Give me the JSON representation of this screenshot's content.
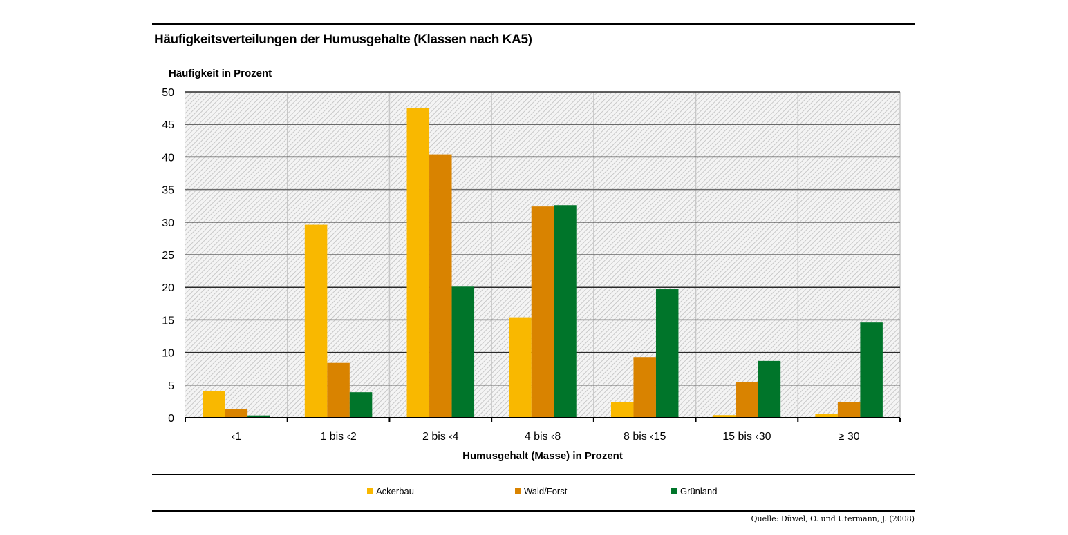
{
  "chart_data": {
    "type": "bar",
    "title": "Häufigkeitsverteilungen der Humusgehalte (Klassen nach KA5)",
    "ylabel": "Häufigkeit in Prozent",
    "xlabel": "Humusgehalt (Masse) in Prozent",
    "ylim": [
      0,
      50
    ],
    "yticks": [
      0,
      5,
      10,
      15,
      20,
      25,
      30,
      35,
      40,
      45,
      50
    ],
    "grid": true,
    "legend_position": "bottom",
    "categories": [
      "‹1",
      "1 bis ‹2",
      "2 bis ‹4",
      "4 bis ‹8",
      "8 bis ‹15",
      "15 bis ‹30",
      "≥ 30"
    ],
    "series": [
      {
        "name": "Ackerbau",
        "color": "#f9b800",
        "values": [
          4.1,
          29.6,
          47.5,
          15.4,
          2.4,
          0.4,
          0.6
        ]
      },
      {
        "name": "Wald/Forst",
        "color": "#d98300",
        "values": [
          1.3,
          8.4,
          40.4,
          32.4,
          9.3,
          5.5,
          2.4
        ]
      },
      {
        "name": "Grünland",
        "color": "#00752a",
        "values": [
          0.35,
          3.9,
          20.1,
          32.6,
          19.7,
          8.7,
          14.6
        ]
      }
    ],
    "source": "Quelle: Düwel, O. und Utermann, J. (2008)"
  }
}
